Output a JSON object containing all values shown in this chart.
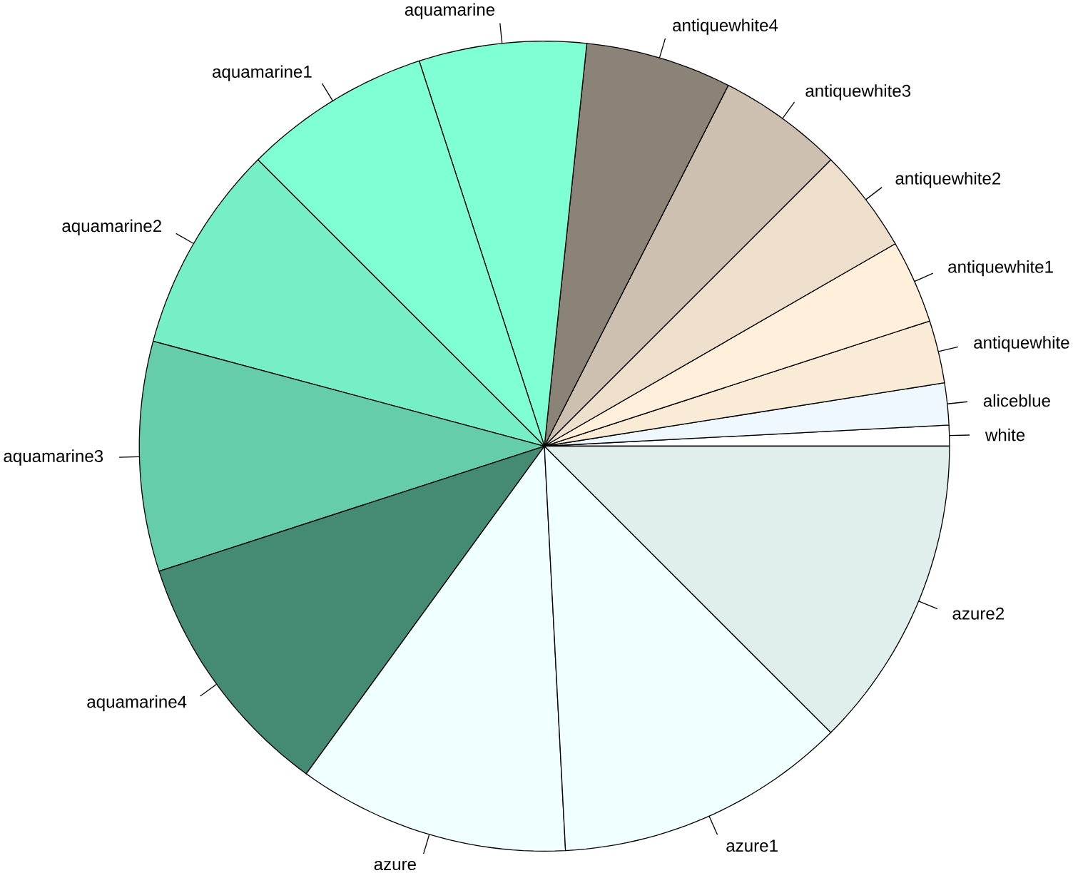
{
  "chart_data": {
    "type": "pie",
    "categories": [
      "white",
      "aliceblue",
      "antiquewhite",
      "antiquewhite1",
      "antiquewhite2",
      "antiquewhite3",
      "antiquewhite4",
      "aquamarine",
      "aquamarine1",
      "aquamarine2",
      "aquamarine3",
      "aquamarine4",
      "azure",
      "azure1",
      "azure2"
    ],
    "values": [
      0.83,
      1.67,
      2.5,
      3.33,
      4.17,
      5,
      5.83,
      6.67,
      7.5,
      8.33,
      9.17,
      10,
      10.83,
      11.67,
      12.5
    ],
    "colors": [
      "#ffffff",
      "#f0f8ff",
      "#faebd7",
      "#ffefdb",
      "#eedfcc",
      "#cdc0b0",
      "#8b8378",
      "#7fffd4",
      "#7fffd4",
      "#76eec6",
      "#66cdaa",
      "#458b74",
      "#f0ffff",
      "#f0ffff",
      "#e0eeee"
    ]
  }
}
